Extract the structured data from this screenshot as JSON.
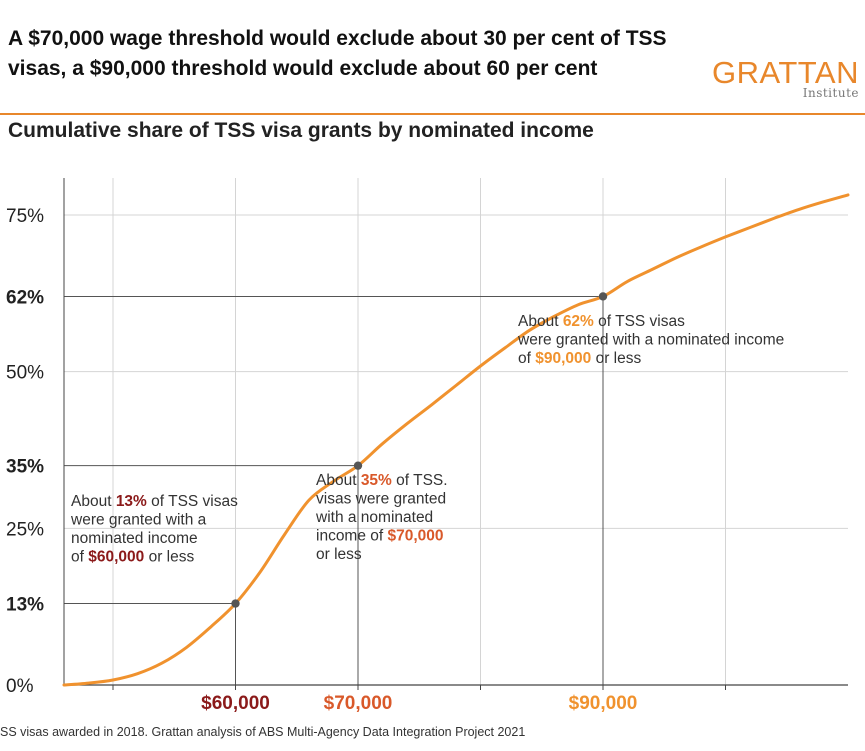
{
  "header": {
    "title": "A $70,000 wage threshold would exclude about 30 per cent of TSS visas, a $90,000 threshold would exclude about 60 per cent",
    "subtitle": "Cumulative share of TSS visa grants by nominated income",
    "logo_word": "GRATTAN",
    "logo_sub": "Institute"
  },
  "footer": {
    "source": "SS visas awarded in 2018. Grattan analysis of ABS Multi-Agency Data Integration Project 2021"
  },
  "colors": {
    "curve": "#f0922e",
    "grid": "#d4d4d4",
    "guide": "#555555",
    "dark_red": "#8b1a1a",
    "orange_red": "#d9592a",
    "orange": "#f0922e",
    "logo": "#e8872b"
  },
  "chart_data": {
    "type": "line",
    "title": "Cumulative share of TSS visa grants by nominated income",
    "xlabel": "",
    "ylabel": "",
    "xlim": [
      46000,
      110000
    ],
    "ylim": [
      0,
      82.5
    ],
    "grid": true,
    "y_ticks": [
      {
        "value": 0,
        "label": "0%",
        "highlight": false
      },
      {
        "value": 13,
        "label": "13%",
        "highlight": true,
        "color_key": "dark_red"
      },
      {
        "value": 25,
        "label": "25%",
        "highlight": false
      },
      {
        "value": 35,
        "label": "35%",
        "highlight": true,
        "color_key": "orange_red"
      },
      {
        "value": 50,
        "label": "50%",
        "highlight": false
      },
      {
        "value": 62,
        "label": "62%",
        "highlight": true,
        "color_key": "orange"
      },
      {
        "value": 75,
        "label": "75%",
        "highlight": false
      }
    ],
    "x_gridlines": [
      50000,
      60000,
      70000,
      80000,
      90000,
      100000
    ],
    "x_ticks": [
      {
        "value": 60000,
        "label": "$60,000",
        "color_key": "dark_red"
      },
      {
        "value": 70000,
        "label": "$70,000",
        "color_key": "orange_red"
      },
      {
        "value": 90000,
        "label": "$90,000",
        "color_key": "orange"
      }
    ],
    "series": [
      {
        "x": [
          46000,
          48000,
          50000,
          52000,
          54000,
          56000,
          58000,
          60000,
          62000,
          64000,
          66000,
          68000,
          70000,
          72000,
          74000,
          76000,
          78000,
          80000,
          82000,
          84000,
          86000,
          88000,
          90000,
          92000,
          94000,
          96000,
          98000,
          100000,
          102000,
          104000,
          106000,
          108000,
          110000
        ],
        "y": [
          0,
          0.3,
          0.8,
          1.8,
          3.5,
          6,
          9.3,
          13,
          18,
          24,
          29.5,
          32.5,
          35,
          38.5,
          41.7,
          44.7,
          47.8,
          50.9,
          53.8,
          56.6,
          58.8,
          60.7,
          62,
          64.4,
          66.3,
          68.2,
          69.9,
          71.5,
          73,
          74.5,
          75.9,
          77.1,
          78.2
        ]
      }
    ],
    "markers": [
      {
        "x": 60000,
        "y": 13
      },
      {
        "x": 70000,
        "y": 35
      },
      {
        "x": 90000,
        "y": 62
      }
    ],
    "annotations": [
      {
        "anchor_x": 60000,
        "color_key": "dark_red",
        "lines": [
          [
            {
              "t": "About "
            },
            {
              "t": "13%",
              "hl": true
            },
            {
              "t": " of TSS visas"
            }
          ],
          [
            {
              "t": "were granted with a"
            }
          ],
          [
            {
              "t": "nominated income"
            }
          ],
          [
            {
              "t": "of "
            },
            {
              "t": "$60,000",
              "hl": true
            },
            {
              "t": " or less"
            }
          ]
        ]
      },
      {
        "anchor_x": 70000,
        "color_key": "orange_red",
        "lines": [
          [
            {
              "t": "About "
            },
            {
              "t": "35%",
              "hl": true
            },
            {
              "t": " of TSS."
            }
          ],
          [
            {
              "t": "visas were granted"
            }
          ],
          [
            {
              "t": "with a nominated"
            }
          ],
          [
            {
              "t": "income of "
            },
            {
              "t": "$70,000",
              "hl": true
            }
          ],
          [
            {
              "t": "or less"
            }
          ]
        ]
      },
      {
        "anchor_x": 90000,
        "color_key": "orange",
        "lines": [
          [
            {
              "t": "About "
            },
            {
              "t": "62%",
              "hl": true
            },
            {
              "t": " of TSS visas"
            }
          ],
          [
            {
              "t": "were granted with a nominated income"
            }
          ],
          [
            {
              "t": "of "
            },
            {
              "t": "$90,000",
              "hl": true
            },
            {
              "t": " or less"
            }
          ]
        ]
      }
    ]
  }
}
